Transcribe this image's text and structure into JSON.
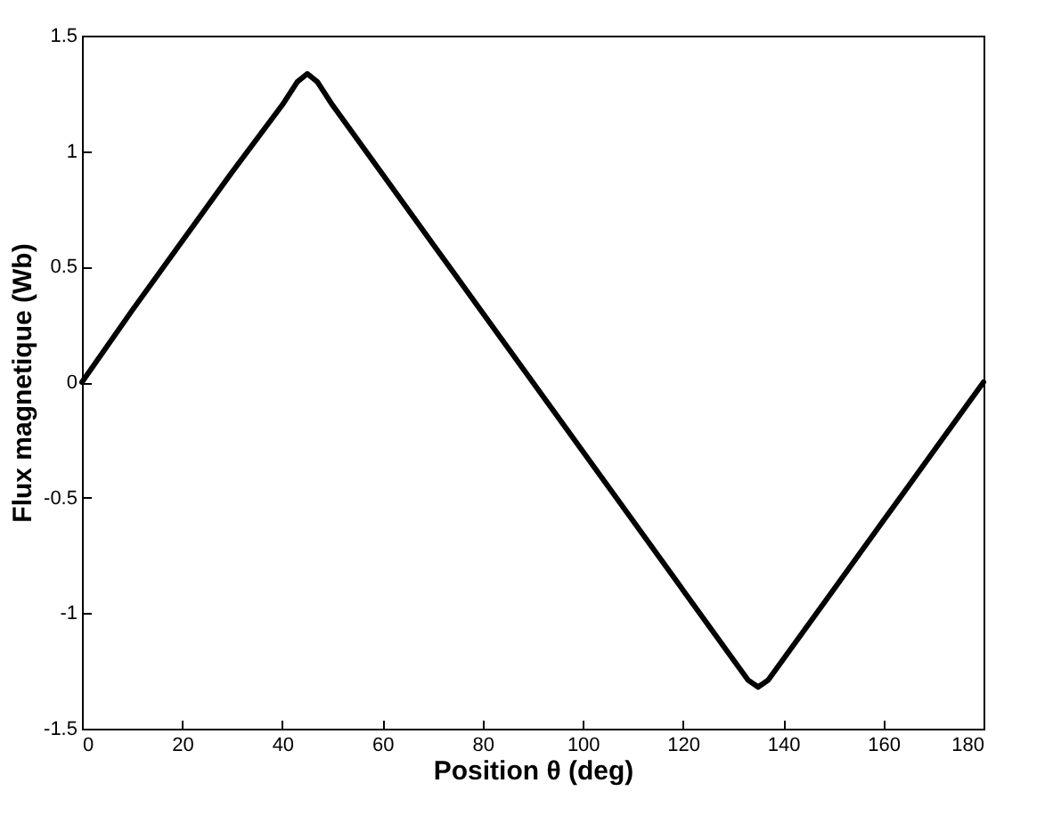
{
  "chart_data": {
    "type": "line",
    "xlabel": "Position θ (deg)",
    "ylabel": "Flux magnetique  (Wb)",
    "x": [
      0,
      10,
      20,
      30,
      40,
      43,
      45,
      47,
      50,
      60,
      70,
      80,
      90,
      100,
      110,
      120,
      130,
      133,
      135,
      137,
      140,
      150,
      160,
      170,
      180
    ],
    "series": [
      {
        "color": "#000000",
        "values": [
          0,
          0.31,
          0.61,
          0.91,
          1.2,
          1.3,
          1.335,
          1.3,
          1.2,
          0.9,
          0.6,
          0.3,
          0,
          -0.3,
          -0.6,
          -0.9,
          -1.2,
          -1.29,
          -1.32,
          -1.29,
          -1.2,
          -0.9,
          -0.6,
          -0.3,
          0
        ]
      }
    ],
    "xlim": [
      0,
      180
    ],
    "xticks": [
      0,
      20,
      40,
      60,
      80,
      100,
      120,
      140,
      160,
      180
    ],
    "ylim": [
      -1.5,
      1.5
    ],
    "yticks": [
      -1.5,
      -1,
      -0.5,
      0,
      0.5,
      1,
      1.5
    ],
    "grid": false,
    "marker": "none",
    "line_style": "solid"
  }
}
